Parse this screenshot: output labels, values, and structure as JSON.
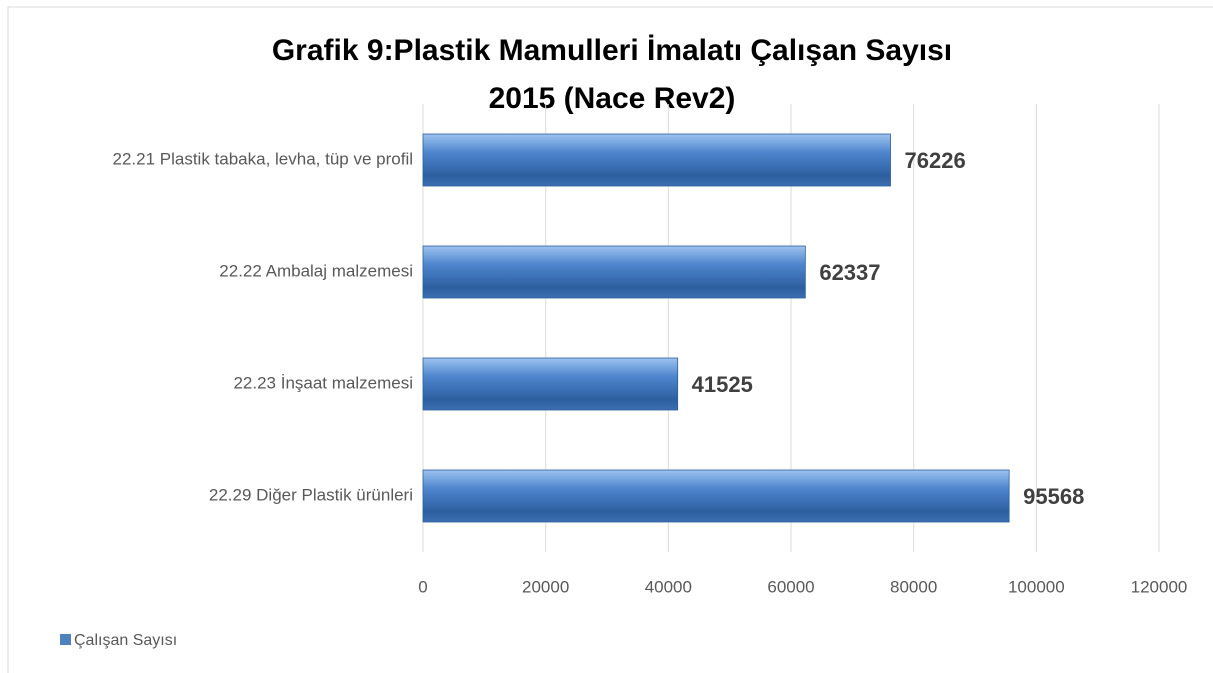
{
  "chart_data": {
    "type": "bar",
    "orientation": "horizontal",
    "title": [
      "Grafik 9:Plastik Mamulleri İmalatı Çalışan Sayısı",
      "2015 (Nace Rev2)"
    ],
    "categories": [
      "22.21 Plastik tabaka, levha, tüp ve profil",
      "22.22 Ambalaj malzemesi",
      "22.23 İnşaat malzemesi",
      "22.29 Diğer Plastik ürünleri"
    ],
    "series": [
      {
        "name": "Çalışan Sayısı",
        "color": "#4f81bd",
        "values": [
          76226,
          62337,
          41525,
          95568
        ]
      }
    ],
    "xlim": [
      0,
      120000
    ],
    "xticks": [
      0,
      20000,
      40000,
      60000,
      80000,
      100000,
      120000
    ],
    "grid": true,
    "legend": "bottom-left"
  }
}
